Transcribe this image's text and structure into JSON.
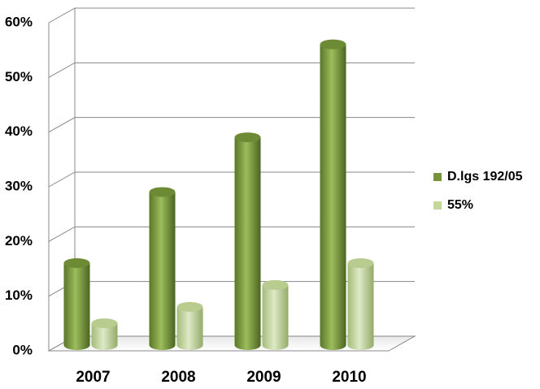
{
  "chart_data": {
    "type": "bar3d",
    "categories": [
      "2007",
      "2008",
      "2009",
      "2010"
    ],
    "series": [
      {
        "name": "D.lgs 192/05",
        "color": "#77933c",
        "values": [
          15,
          28,
          38,
          55
        ]
      },
      {
        "name": "55%",
        "color": "#c3d69b",
        "values": [
          4,
          7,
          11,
          15
        ]
      }
    ],
    "ylim": [
      0,
      60
    ],
    "yticks": [
      {
        "value": 0,
        "label": "0%"
      },
      {
        "value": 10,
        "label": "10%"
      },
      {
        "value": 20,
        "label": "20%"
      },
      {
        "value": 30,
        "label": "30%"
      },
      {
        "value": 40,
        "label": "40%"
      },
      {
        "value": 50,
        "label": "50%"
      },
      {
        "value": 60,
        "label": "60%"
      }
    ],
    "grid": true,
    "legend": "right"
  }
}
